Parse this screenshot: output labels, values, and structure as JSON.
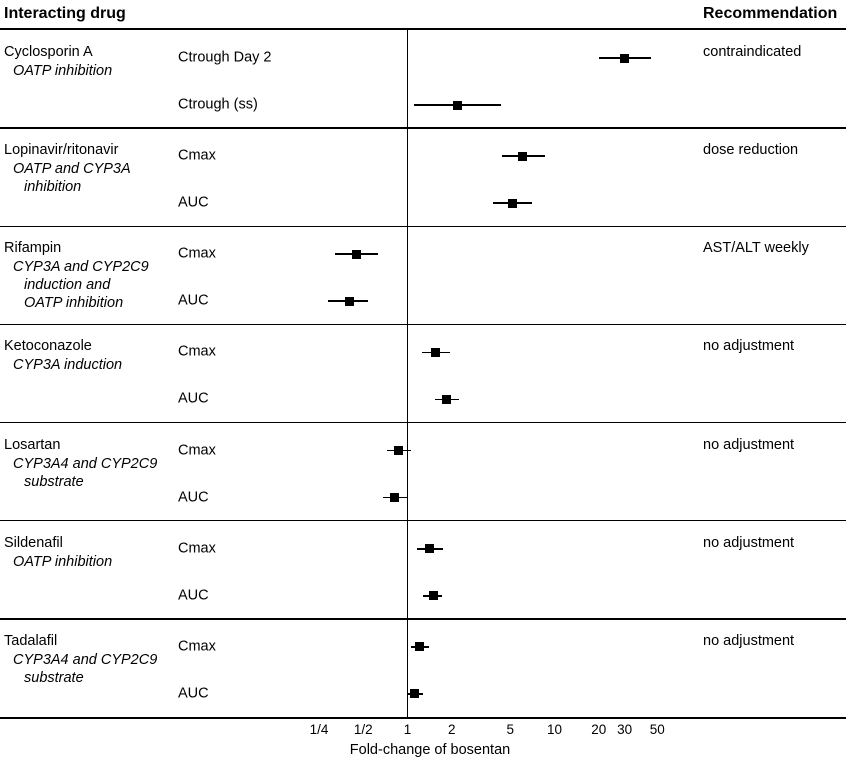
{
  "header": {
    "left": "Interacting drug",
    "right": "Recommendation"
  },
  "colors": {
    "marker": "#000000",
    "line": "#000000",
    "text": "#000000",
    "background": "#ffffff"
  },
  "chart_data": {
    "type": "forest",
    "xscale": "log",
    "xlabel": "Fold-change of bosentan",
    "reference_value": 1,
    "xlim": [
      0.2,
      60
    ],
    "grid": false,
    "xticks": [
      {
        "label": "1/4",
        "value": 0.25
      },
      {
        "label": "1/2",
        "value": 0.5
      },
      {
        "label": "1",
        "value": 1
      },
      {
        "label": "2",
        "value": 2
      },
      {
        "label": "5",
        "value": 5
      },
      {
        "label": "10",
        "value": 10
      },
      {
        "label": "20",
        "value": 20
      },
      {
        "label": "30",
        "value": 30
      },
      {
        "label": "50",
        "value": 50
      }
    ],
    "groups": [
      {
        "drug": "Cyclosporin A",
        "mechanism": [
          "OATP inhibition"
        ],
        "recommendation": "contraindicated",
        "rows": [
          {
            "label": "Ctrough Day 2",
            "value": 30,
            "ci_low": 20,
            "ci_high": 45
          },
          {
            "label": "Ctrough (ss)",
            "value": 2.2,
            "ci_low": 1.1,
            "ci_high": 4.3
          }
        ]
      },
      {
        "drug": "Lopinavir/ritonavir",
        "mechanism": [
          "OATP and CYP3A",
          "inhibition"
        ],
        "recommendation": "dose reduction",
        "rows": [
          {
            "label": "Cmax",
            "value": 6.1,
            "ci_low": 4.4,
            "ci_high": 8.6
          },
          {
            "label": "AUC",
            "value": 5.2,
            "ci_low": 3.8,
            "ci_high": 7.0
          }
        ]
      },
      {
        "drug": "Rifampin",
        "mechanism": [
          "CYP3A and CYP2C9",
          "induction and",
          "OATP inhibition"
        ],
        "recommendation": "AST/ALT weekly",
        "rows": [
          {
            "label": "Cmax",
            "value": 0.45,
            "ci_low": 0.32,
            "ci_high": 0.63
          },
          {
            "label": "AUC",
            "value": 0.4,
            "ci_low": 0.29,
            "ci_high": 0.54
          }
        ]
      },
      {
        "drug": "Ketoconazole",
        "mechanism": [
          "CYP3A induction"
        ],
        "recommendation": "no adjustment",
        "rows": [
          {
            "label": "Cmax",
            "value": 1.55,
            "ci_low": 1.25,
            "ci_high": 1.95
          },
          {
            "label": "AUC",
            "value": 1.85,
            "ci_low": 1.55,
            "ci_high": 2.25
          }
        ]
      },
      {
        "drug": "Losartan",
        "mechanism": [
          "CYP3A4 and CYP2C9",
          "substrate"
        ],
        "recommendation": "no adjustment",
        "rows": [
          {
            "label": "Cmax",
            "value": 0.87,
            "ci_low": 0.72,
            "ci_high": 1.05
          },
          {
            "label": "AUC",
            "value": 0.82,
            "ci_low": 0.68,
            "ci_high": 0.99
          }
        ]
      },
      {
        "drug": "Sildenafil",
        "mechanism": [
          "OATP inhibition"
        ],
        "recommendation": "no adjustment",
        "rows": [
          {
            "label": "Cmax",
            "value": 1.42,
            "ci_low": 1.16,
            "ci_high": 1.75
          },
          {
            "label": "AUC",
            "value": 1.5,
            "ci_low": 1.28,
            "ci_high": 1.72
          }
        ]
      },
      {
        "drug": "Tadalafil",
        "mechanism": [
          "CYP3A4 and CYP2C9",
          "substrate"
        ],
        "recommendation": "no adjustment",
        "rows": [
          {
            "label": "Cmax",
            "value": 1.2,
            "ci_low": 1.05,
            "ci_high": 1.4
          },
          {
            "label": "AUC",
            "value": 1.12,
            "ci_low": 1.0,
            "ci_high": 1.27
          }
        ]
      }
    ]
  }
}
